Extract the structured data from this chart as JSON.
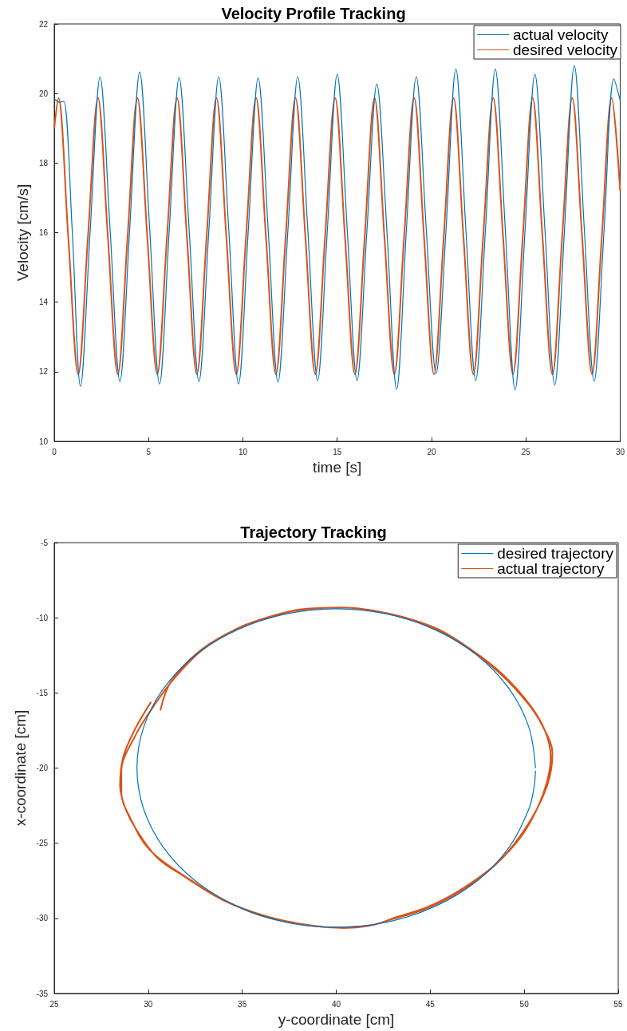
{
  "chart_data": [
    {
      "type": "line",
      "title": "Velocity Profile Tracking",
      "xlabel": "time [s]",
      "ylabel": "Velocity [cm/s]",
      "xlim": [
        0,
        30
      ],
      "xticks": [
        0,
        5,
        10,
        15,
        20,
        25,
        30
      ],
      "ylim": [
        10,
        22
      ],
      "yticks": [
        10,
        12,
        14,
        16,
        18,
        20,
        22
      ],
      "grid": false,
      "legend": "top right",
      "series": [
        {
          "name": "actual velocity",
          "color": "#0072bd",
          "x": [
            0,
            0.3,
            0.5,
            0.95,
            1.39,
            1.91,
            2.43,
            2.96,
            3.48,
            4.0,
            4.53,
            5.06,
            5.58,
            6.1,
            6.62,
            7.15,
            7.67,
            8.2,
            8.72,
            9.25,
            9.77,
            10.29,
            10.81,
            11.34,
            11.86,
            12.39,
            12.91,
            13.44,
            13.96,
            14.48,
            15.0,
            15.53,
            16.05,
            16.58,
            17.1,
            17.63,
            18.15,
            18.67,
            19.19,
            19.72,
            20.24,
            20.77,
            21.29,
            21.82,
            22.34,
            22.86,
            23.38,
            23.91,
            24.43,
            24.96,
            25.48,
            26.01,
            26.53,
            27.05,
            27.57,
            28.1,
            28.62,
            29.15,
            29.67,
            30
          ],
          "values": [
            19.85,
            19.75,
            19.78,
            16.1,
            11.58,
            16.1,
            20.48,
            16.1,
            11.72,
            16.1,
            20.62,
            16.1,
            11.65,
            16.1,
            20.46,
            16.1,
            11.72,
            16.1,
            20.48,
            16.1,
            11.65,
            16.1,
            20.45,
            16.1,
            11.7,
            16.1,
            20.48,
            16.1,
            11.75,
            16.1,
            20.55,
            16.1,
            11.75,
            16.1,
            20.27,
            16.1,
            11.5,
            16.1,
            20.48,
            16.1,
            11.95,
            16.1,
            20.7,
            16.1,
            11.75,
            16.1,
            20.7,
            16.1,
            11.48,
            16.1,
            20.55,
            16.1,
            11.62,
            16.1,
            20.8,
            16.1,
            11.73,
            16.1,
            20.42,
            19.8
          ]
        },
        {
          "name": "desired velocity",
          "color": "#d95319",
          "x": [
            0,
            0.22,
            0.74,
            1.27,
            1.79,
            2.32,
            2.84,
            3.37,
            3.89,
            4.41,
            4.93,
            5.46,
            5.98,
            6.51,
            7.03,
            7.56,
            8.08,
            8.6,
            9.12,
            9.65,
            10.17,
            10.7,
            11.22,
            11.75,
            12.27,
            12.79,
            13.31,
            13.84,
            14.36,
            14.89,
            15.41,
            15.94,
            16.46,
            16.98,
            17.5,
            18.03,
            18.55,
            19.08,
            19.6,
            20.13,
            20.65,
            21.17,
            21.69,
            22.22,
            22.74,
            23.27,
            23.79,
            24.32,
            24.84,
            25.36,
            25.88,
            26.41,
            26.93,
            27.46,
            27.98,
            28.51,
            29.03,
            29.55,
            30
          ],
          "values": [
            19.0,
            19.87,
            15.9,
            11.93,
            15.9,
            19.87,
            15.9,
            11.93,
            15.9,
            19.87,
            15.9,
            11.93,
            15.9,
            19.87,
            15.9,
            11.93,
            15.9,
            19.87,
            15.9,
            11.93,
            15.9,
            19.87,
            15.9,
            11.93,
            15.9,
            19.87,
            15.9,
            11.93,
            15.9,
            19.87,
            15.9,
            11.93,
            15.9,
            19.87,
            15.9,
            11.93,
            15.9,
            19.87,
            15.9,
            11.93,
            15.9,
            19.87,
            15.9,
            11.93,
            15.9,
            19.87,
            15.9,
            11.93,
            15.9,
            19.87,
            15.9,
            11.93,
            15.9,
            19.87,
            15.9,
            11.93,
            15.9,
            19.87,
            17.2
          ]
        }
      ]
    },
    {
      "type": "line",
      "title": "Trajectory Tracking",
      "xlabel": "y-coordinate [cm]",
      "ylabel": "x-coordinate [cm]",
      "xlim": [
        25,
        55
      ],
      "xticks": [
        25,
        30,
        35,
        40,
        45,
        50,
        55
      ],
      "ylim": [
        -35,
        -5
      ],
      "yticks": [
        -35,
        -30,
        -25,
        -20,
        -15,
        -10,
        -5
      ],
      "grid": false,
      "legend": "top right",
      "series": [
        {
          "name": "desired trajectory",
          "color": "#0072bd",
          "x": [
            50.6,
            50.24,
            49.18,
            47.5,
            45.3,
            42.74,
            40,
            37.26,
            34.7,
            32.5,
            30.82,
            29.76,
            29.4,
            29.76,
            30.82,
            32.5,
            34.7,
            37.26,
            40,
            42.74,
            45.3,
            47.5,
            49.18,
            50.24,
            50.51,
            50.6
          ],
          "values": [
            -20,
            -17.26,
            -14.7,
            -12.5,
            -10.82,
            -9.76,
            -9.4,
            -9.76,
            -10.82,
            -12.5,
            -14.7,
            -17.26,
            -20,
            -22.74,
            -25.3,
            -27.5,
            -29.18,
            -30.24,
            -30.6,
            -30.24,
            -29.18,
            -27.5,
            -25.3,
            -22.74,
            -21.38,
            -20.18
          ]
        },
        {
          "name": "actual trajectory",
          "color": "#d95319",
          "x": [
            30.15,
            29.3,
            28.67,
            28.5,
            28.76,
            29.32,
            30.45,
            31.95,
            34.0,
            36.28,
            38.53,
            40.41,
            41.73,
            42.86,
            44.74,
            46.62,
            48.5,
            50.0,
            51.03,
            51.41,
            51.13,
            50.38,
            48.87,
            47.18,
            45.3,
            42.86,
            40.41,
            38.16,
            36.65,
            34.77,
            32.89,
            31.39,
            30.26,
            29.32,
            28.57,
            28.57,
            29.04,
            30.08,
            32.14,
            34.21,
            36.47,
            40.04,
            41.92,
            43.05,
            44.92,
            46.8,
            48.68,
            50.18,
            51.22,
            51.5,
            50.94,
            50.19,
            48.68,
            46.99,
            45.11,
            42.67,
            40.23,
            37.97,
            36.47,
            34.59,
            32.71,
            31.2,
            30.64
          ],
          "values": [
            -15.6,
            -17.4,
            -19.26,
            -21.17,
            -22.6,
            -24.0,
            -25.93,
            -27.24,
            -28.8,
            -29.86,
            -30.45,
            -30.64,
            -30.5,
            -30.1,
            -29.38,
            -28.19,
            -26.4,
            -24.26,
            -21.64,
            -19.26,
            -17.6,
            -15.93,
            -13.79,
            -12.12,
            -10.69,
            -9.74,
            -9.33,
            -9.43,
            -9.86,
            -10.69,
            -12.12,
            -14.02,
            -15.93,
            -17.83,
            -20.21,
            -21.64,
            -23.31,
            -25.45,
            -27.36,
            -28.9,
            -29.98,
            -30.6,
            -30.45,
            -29.98,
            -29.21,
            -27.95,
            -26.17,
            -23.79,
            -21.17,
            -19.02,
            -17.12,
            -15.69,
            -13.67,
            -12.0,
            -10.64,
            -9.69,
            -9.31,
            -9.5,
            -9.98,
            -10.81,
            -12.24,
            -14.26,
            -16.17
          ]
        }
      ]
    }
  ]
}
